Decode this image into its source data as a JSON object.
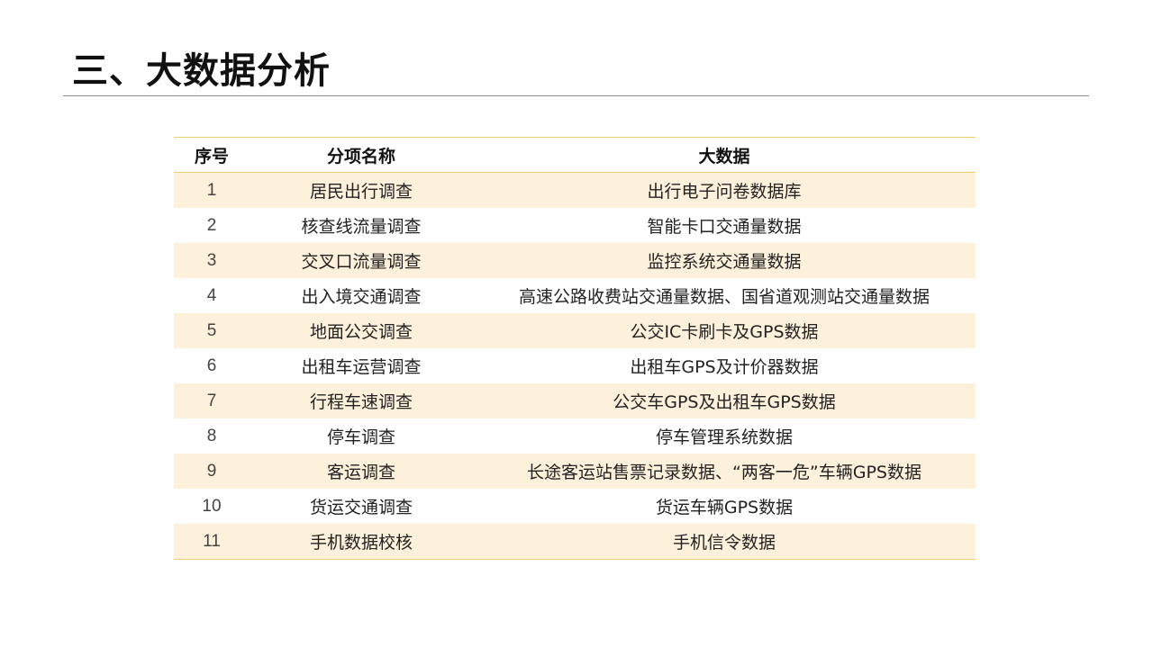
{
  "title": "三、大数据分析",
  "table": {
    "headers": [
      "序号",
      "分项名称",
      "大数据"
    ],
    "rows": [
      {
        "no": "1",
        "name": "居民出行调查",
        "data": "出行电子问卷数据库"
      },
      {
        "no": "2",
        "name": "核查线流量调查",
        "data": "智能卡口交通量数据"
      },
      {
        "no": "3",
        "name": "交叉口流量调查",
        "data": "监控系统交通量数据"
      },
      {
        "no": "4",
        "name": "出入境交通调查",
        "data": "高速公路收费站交通量数据、国省道观测站交通量数据"
      },
      {
        "no": "5",
        "name": "地面公交调查",
        "data": "公交IC卡刷卡及GPS数据"
      },
      {
        "no": "6",
        "name": "出租车运营调查",
        "data": "出租车GPS及计价器数据"
      },
      {
        "no": "7",
        "name": "行程车速调查",
        "data": "公交车GPS及出租车GPS数据"
      },
      {
        "no": "8",
        "name": "停车调查",
        "data": "停车管理系统数据"
      },
      {
        "no": "9",
        "name": "客运调查",
        "data": "长途客运站售票记录数据、“两客一危”车辆GPS数据"
      },
      {
        "no": "10",
        "name": "货运交通调查",
        "data": "货运车辆GPS数据"
      },
      {
        "no": "11",
        "name": "手机数据校核",
        "data": "手机信令数据"
      }
    ]
  },
  "colors": {
    "band": "#fdf1dc",
    "rule": "#f0cf70"
  }
}
